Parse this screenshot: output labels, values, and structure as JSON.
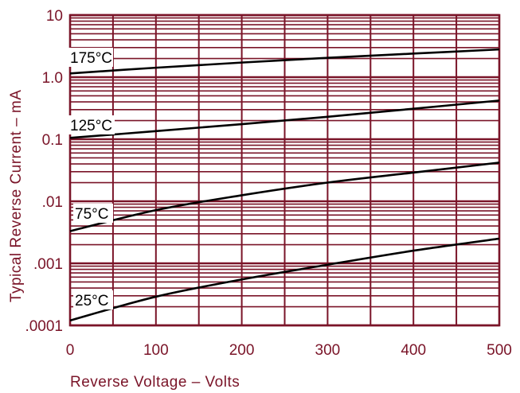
{
  "chart_data": {
    "type": "line",
    "xlabel": "Reverse Voltage  –  Volts",
    "ylabel": "Typical Reverse Current  –  mA",
    "x_scale": "linear",
    "y_scale": "log",
    "xlim": [
      0,
      500
    ],
    "ylim": [
      0.0001,
      10
    ],
    "x_ticks": [
      0,
      100,
      200,
      300,
      400,
      500
    ],
    "x_tick_labels": [
      "0",
      "100",
      "200",
      "300",
      "400",
      "500"
    ],
    "y_ticks": [
      0.0001,
      0.001,
      0.01,
      0.1,
      1,
      10
    ],
    "y_tick_labels": [
      ".0001",
      ".001",
      ".01",
      "0.1",
      "1.0",
      "10"
    ],
    "grid": true,
    "colors": {
      "grid": "#7a1428",
      "curve": "#000000",
      "text": "#7a1428"
    },
    "series": [
      {
        "name": "175°C",
        "x": [
          0,
          100,
          200,
          300,
          400,
          500
        ],
        "y": [
          1.15,
          1.42,
          1.72,
          2.05,
          2.4,
          2.8
        ]
      },
      {
        "name": "125°C",
        "x": [
          0,
          100,
          200,
          300,
          400,
          500
        ],
        "y": [
          0.105,
          0.135,
          0.175,
          0.23,
          0.31,
          0.42
        ]
      },
      {
        "name": "75°C",
        "x": [
          0,
          100,
          200,
          300,
          400,
          500
        ],
        "y": [
          0.0033,
          0.0072,
          0.0125,
          0.02,
          0.029,
          0.042
        ]
      },
      {
        "name": "25°C",
        "x": [
          0,
          100,
          200,
          300,
          400,
          500
        ],
        "y": [
          0.00012,
          0.00029,
          0.00055,
          0.00095,
          0.0016,
          0.0025
        ]
      }
    ]
  }
}
